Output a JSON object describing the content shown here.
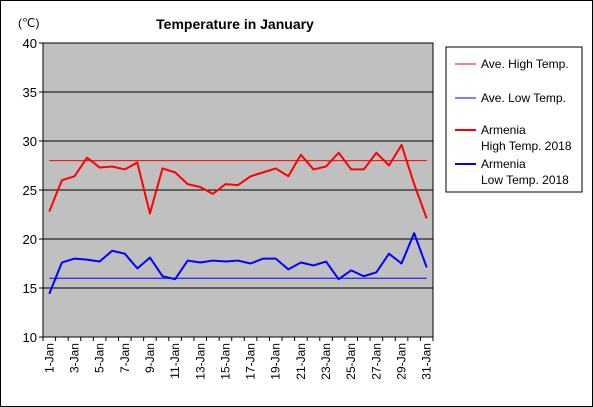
{
  "chart_data": {
    "type": "line",
    "title": "Temperature in January",
    "ylabel": "(℃)",
    "xlabel": "",
    "ylim": [
      10,
      40
    ],
    "yticks": [
      10,
      15,
      20,
      25,
      30,
      35,
      40
    ],
    "grid": "horizontal",
    "background_color": "#c0c0c0",
    "legend_position": "right",
    "x_tick_labels": [
      "1-Jan",
      "3-Jan",
      "5-Jan",
      "7-Jan",
      "9-Jan",
      "11-Jan",
      "13-Jan",
      "15-Jan",
      "17-Jan",
      "19-Jan",
      "21-Jan",
      "23-Jan",
      "25-Jan",
      "27-Jan",
      "29-Jan",
      "31-Jan"
    ],
    "x": [
      1,
      2,
      3,
      4,
      5,
      6,
      7,
      8,
      9,
      10,
      11,
      12,
      13,
      14,
      15,
      16,
      17,
      18,
      19,
      20,
      21,
      22,
      23,
      24,
      25,
      26,
      27,
      28,
      29,
      30,
      31
    ],
    "series": [
      {
        "name": "Ave. High Temp.",
        "color": "#ff0000",
        "width": 1,
        "values": [
          28,
          28,
          28,
          28,
          28,
          28,
          28,
          28,
          28,
          28,
          28,
          28,
          28,
          28,
          28,
          28,
          28,
          28,
          28,
          28,
          28,
          28,
          28,
          28,
          28,
          28,
          28,
          28,
          28,
          28,
          28
        ]
      },
      {
        "name": "Ave. Low Temp.",
        "color": "#0000ff",
        "width": 1,
        "values": [
          16,
          16,
          16,
          16,
          16,
          16,
          16,
          16,
          16,
          16,
          16,
          16,
          16,
          16,
          16,
          16,
          16,
          16,
          16,
          16,
          16,
          16,
          16,
          16,
          16,
          16,
          16,
          16,
          16,
          16,
          16
        ]
      },
      {
        "name": "Armenia\nHigh Temp. 2018",
        "color": "#ff0000",
        "width": 2,
        "values": [
          22.8,
          26.0,
          26.4,
          28.3,
          27.3,
          27.4,
          27.1,
          27.8,
          22.6,
          27.2,
          26.8,
          25.6,
          25.3,
          24.6,
          25.6,
          25.5,
          26.4,
          26.8,
          27.2,
          26.4,
          28.6,
          27.1,
          27.4,
          28.8,
          27.1,
          27.1,
          28.8,
          27.5,
          29.6,
          25.6,
          22.1
        ]
      },
      {
        "name": "Armenia\nLow Temp. 2018",
        "color": "#0000ff",
        "width": 2,
        "values": [
          14.4,
          17.6,
          18.0,
          17.9,
          17.7,
          18.8,
          18.5,
          17.0,
          18.1,
          16.2,
          15.9,
          17.8,
          17.6,
          17.8,
          17.7,
          17.8,
          17.5,
          18.0,
          18.0,
          16.9,
          17.6,
          17.3,
          17.7,
          15.9,
          16.8,
          16.2,
          16.6,
          18.5,
          17.5,
          20.6,
          17.1
        ]
      }
    ]
  }
}
